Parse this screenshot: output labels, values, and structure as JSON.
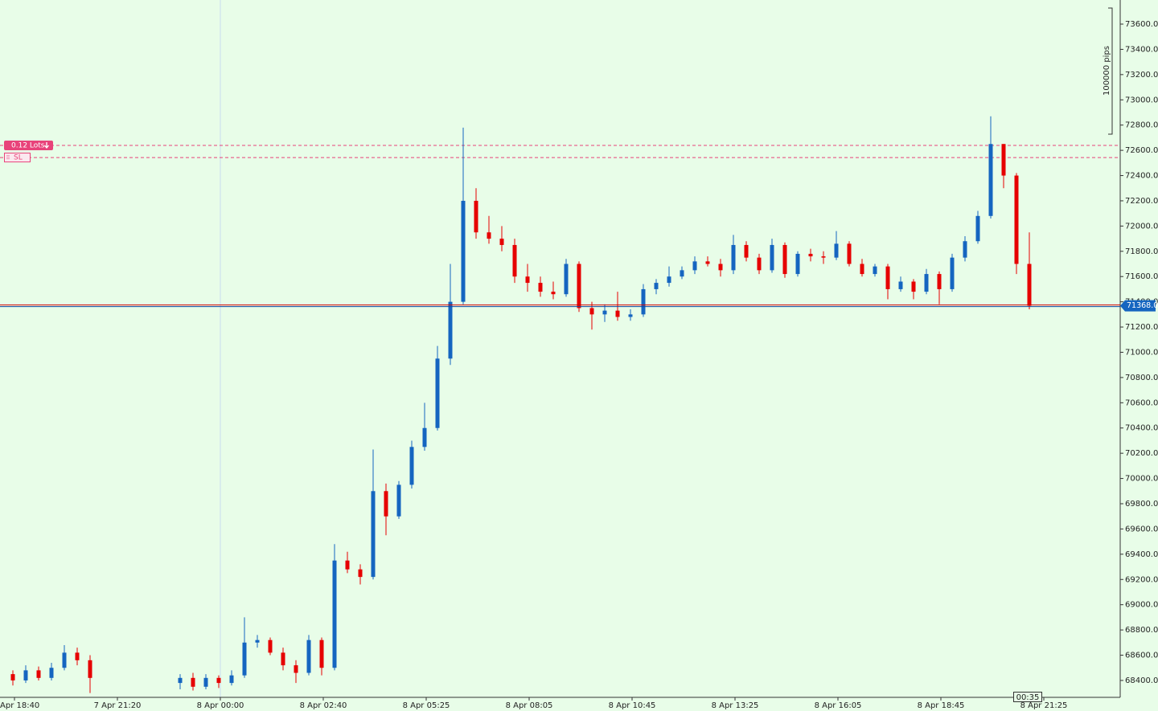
{
  "chart_data": {
    "type": "candlestick",
    "up_color": "#1565c0",
    "down_color": "#e60000",
    "ylim": [
      68266,
      73791
    ],
    "yticks": [
      {
        "value": 68400,
        "label": "68400.00"
      },
      {
        "value": 68600,
        "label": "68600.00"
      },
      {
        "value": 68800,
        "label": "68800.00"
      },
      {
        "value": 69000,
        "label": "69000.00"
      },
      {
        "value": 69200,
        "label": "69200.00"
      },
      {
        "value": 69400,
        "label": "69400.00"
      },
      {
        "value": 69600,
        "label": "69600.00"
      },
      {
        "value": 69800,
        "label": "69800.00"
      },
      {
        "value": 70000,
        "label": "70000.00"
      },
      {
        "value": 70200,
        "label": "70200.00"
      },
      {
        "value": 70400,
        "label": "70400.00"
      },
      {
        "value": 70600,
        "label": "70600.00"
      },
      {
        "value": 70800,
        "label": "70800.00"
      },
      {
        "value": 71000,
        "label": "71000.00"
      },
      {
        "value": 71200,
        "label": "71200.00"
      },
      {
        "value": 71400,
        "label": "71400.00"
      },
      {
        "value": 71600,
        "label": "71600.00"
      },
      {
        "value": 71800,
        "label": "71800.00"
      },
      {
        "value": 72000,
        "label": "72000.00"
      },
      {
        "value": 72200,
        "label": "72200.00"
      },
      {
        "value": 72400,
        "label": "72400.00"
      },
      {
        "value": 72600,
        "label": "72600.00"
      },
      {
        "value": 72800,
        "label": "72800.00"
      },
      {
        "value": 73000,
        "label": "73000.00"
      },
      {
        "value": 73200,
        "label": "73200.00"
      },
      {
        "value": 73400,
        "label": "73400.00"
      },
      {
        "value": 73600,
        "label": "73600.00"
      }
    ],
    "xtick_labels": [
      "Apr 18:40",
      "7 Apr 21:20",
      "8 Apr 00:00",
      "8 Apr 02:40",
      "8 Apr 05:25",
      "8 Apr 08:05",
      "8 Apr 10:45",
      "8 Apr 13:25",
      "8 Apr 16:05",
      "8 Apr 18:45",
      "8 Apr 21:25"
    ],
    "candles": [
      [
        68450,
        68480,
        68360,
        68400
      ],
      [
        68400,
        68520,
        68380,
        68480
      ],
      [
        68480,
        68510,
        68400,
        68420
      ],
      [
        68420,
        68540,
        68400,
        68500
      ],
      [
        68500,
        68680,
        68480,
        68620
      ],
      [
        68620,
        68660,
        68520,
        68560
      ],
      [
        68560,
        68600,
        68300,
        68420
      ],
      null,
      null,
      null,
      null,
      null,
      null,
      [
        68380,
        68450,
        68330,
        68420
      ],
      [
        68420,
        68460,
        68320,
        68350
      ],
      [
        68350,
        68450,
        68330,
        68420
      ],
      [
        68420,
        68440,
        68340,
        68380
      ],
      [
        68380,
        68480,
        68360,
        68440
      ],
      [
        68440,
        68900,
        68420,
        68700
      ],
      [
        68700,
        68760,
        68660,
        68720
      ],
      [
        68720,
        68740,
        68600,
        68620
      ],
      [
        68620,
        68660,
        68480,
        68520
      ],
      [
        68520,
        68560,
        68380,
        68460
      ],
      [
        68460,
        68760,
        68440,
        68720
      ],
      [
        68720,
        68740,
        68440,
        68500
      ],
      [
        68500,
        69480,
        68480,
        69350
      ],
      [
        69350,
        69420,
        69250,
        69280
      ],
      [
        69280,
        69320,
        69160,
        69220
      ],
      [
        69220,
        70230,
        69200,
        69900
      ],
      [
        69900,
        69960,
        69550,
        69700
      ],
      [
        69700,
        69980,
        69680,
        69950
      ],
      [
        69950,
        70300,
        69920,
        70250
      ],
      [
        70250,
        70600,
        70220,
        70400
      ],
      [
        70400,
        71050,
        70380,
        70950
      ],
      [
        70950,
        71700,
        70900,
        71400
      ],
      [
        71400,
        72780,
        71380,
        72200
      ],
      [
        72200,
        72300,
        71900,
        71950
      ],
      [
        71950,
        72080,
        71860,
        71900
      ],
      [
        71900,
        72000,
        71800,
        71850
      ],
      [
        71850,
        71900,
        71550,
        71600
      ],
      [
        71600,
        71700,
        71480,
        71550
      ],
      [
        71550,
        71600,
        71440,
        71480
      ],
      [
        71480,
        71560,
        71420,
        71460
      ],
      [
        71460,
        71740,
        71440,
        71700
      ],
      [
        71700,
        71720,
        71320,
        71350
      ],
      [
        71350,
        71400,
        71180,
        71300
      ],
      [
        71300,
        71380,
        71240,
        71330
      ],
      [
        71330,
        71480,
        71250,
        71280
      ],
      [
        71280,
        71340,
        71250,
        71300
      ],
      [
        71300,
        71540,
        71280,
        71500
      ],
      [
        71500,
        71580,
        71460,
        71550
      ],
      [
        71550,
        71680,
        71520,
        71600
      ],
      [
        71600,
        71680,
        71580,
        71650
      ],
      [
        71650,
        71760,
        71620,
        71720
      ],
      [
        71720,
        71760,
        71680,
        71700
      ],
      [
        71700,
        71740,
        71600,
        71650
      ],
      [
        71650,
        71930,
        71620,
        71850
      ],
      [
        71850,
        71880,
        71720,
        71750
      ],
      [
        71750,
        71780,
        71620,
        71650
      ],
      [
        71650,
        71900,
        71630,
        71850
      ],
      [
        71850,
        71870,
        71590,
        71620
      ],
      [
        71620,
        71800,
        71600,
        71780
      ],
      [
        71780,
        71820,
        71720,
        71760
      ],
      [
        71760,
        71800,
        71700,
        71750
      ],
      [
        71750,
        71960,
        71730,
        71860
      ],
      [
        71860,
        71880,
        71680,
        71700
      ],
      [
        71700,
        71740,
        71600,
        71620
      ],
      [
        71620,
        71700,
        71600,
        71680
      ],
      [
        71680,
        71700,
        71420,
        71500
      ],
      [
        71500,
        71600,
        71480,
        71560
      ],
      [
        71560,
        71580,
        71420,
        71480
      ],
      [
        71480,
        71660,
        71460,
        71620
      ],
      [
        71620,
        71640,
        71380,
        71500
      ],
      [
        71500,
        71780,
        71480,
        71750
      ],
      [
        71750,
        71920,
        71720,
        71880
      ],
      [
        71880,
        72120,
        71860,
        72080
      ],
      [
        72080,
        72870,
        72060,
        72650
      ],
      [
        72650,
        72650,
        72300,
        72400
      ],
      [
        72400,
        72420,
        71620,
        71700
      ],
      [
        71700,
        71950,
        71340,
        71368.01
      ]
    ],
    "current_price": 71368.01,
    "orders": [
      {
        "label": "0.12 Lots",
        "value": 72639
      },
      {
        "label": "SL",
        "value": 72543
      }
    ],
    "order_color": "#e8437a",
    "scale_label": "100000 pips",
    "timer": "00:35"
  }
}
